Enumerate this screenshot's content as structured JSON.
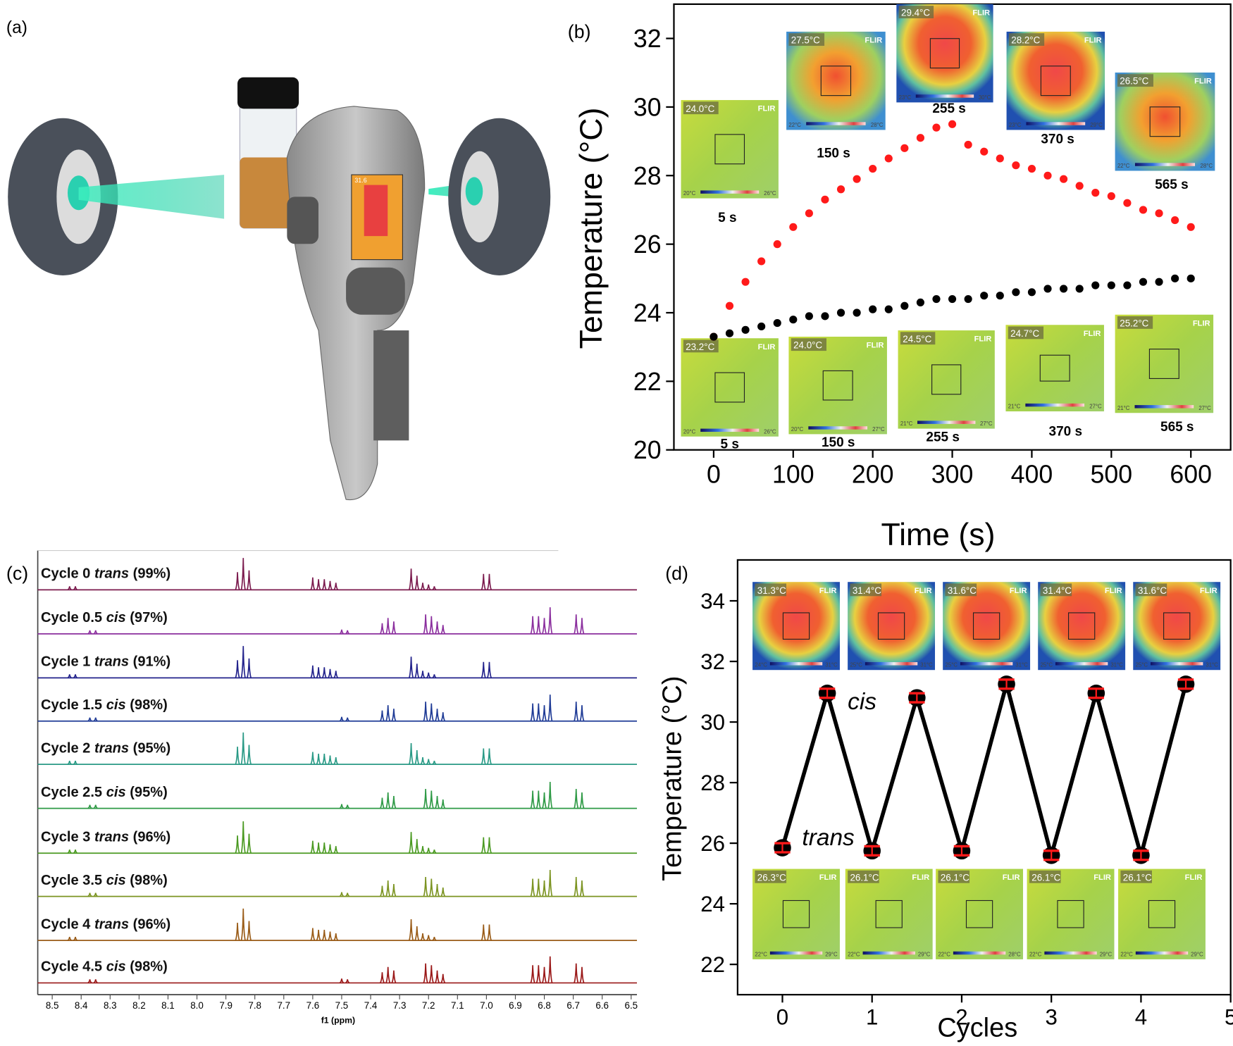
{
  "brand": "FLIR",
  "illustration": {
    "label": "(a)",
    "screen_reading": "31.6"
  },
  "chart_data": [
    {
      "type": "scatter",
      "label": "(b)",
      "xlabel": "Time (s)",
      "ylabel": "Temperature (°C)",
      "xlim": [
        -50,
        650
      ],
      "ylim": [
        20,
        33
      ],
      "xticks": [
        0,
        100,
        200,
        300,
        400,
        500,
        600
      ],
      "yticks": [
        20,
        22,
        24,
        26,
        28,
        30,
        32
      ],
      "x": [
        0,
        20,
        40,
        60,
        80,
        100,
        120,
        140,
        160,
        180,
        200,
        220,
        240,
        260,
        280,
        300,
        320,
        340,
        360,
        380,
        400,
        420,
        440,
        460,
        480,
        500,
        520,
        540,
        560,
        580,
        600
      ],
      "series": [
        {
          "color": "#ff1a1a",
          "values": [
            23.3,
            24.2,
            24.9,
            25.5,
            26.0,
            26.5,
            26.9,
            27.3,
            27.6,
            27.9,
            28.2,
            28.5,
            28.8,
            29.1,
            29.4,
            29.5,
            28.9,
            28.7,
            28.5,
            28.3,
            28.2,
            28.0,
            27.9,
            27.7,
            27.5,
            27.4,
            27.2,
            27.0,
            26.9,
            26.7,
            26.5
          ]
        },
        {
          "color": "#000000",
          "values": [
            23.3,
            23.4,
            23.5,
            23.6,
            23.7,
            23.8,
            23.9,
            23.9,
            24.0,
            24.0,
            24.1,
            24.1,
            24.2,
            24.3,
            24.4,
            24.4,
            24.4,
            24.5,
            24.5,
            24.6,
            24.6,
            24.7,
            24.7,
            24.7,
            24.8,
            24.8,
            24.8,
            24.9,
            24.9,
            25.0,
            25.0
          ]
        }
      ],
      "insets_top": [
        {
          "reading": "24.0°C",
          "time": "5 s",
          "scale": [
            "20°C",
            "26°C"
          ]
        },
        {
          "reading": "27.5°C",
          "time": "150 s",
          "scale": [
            "22°C",
            "28°C"
          ]
        },
        {
          "reading": "29.4°C",
          "time": "255 s",
          "scale": [
            "23°C",
            "30°C"
          ]
        },
        {
          "reading": "28.2°C",
          "time": "370 s",
          "scale": [
            "23°C",
            "29°C"
          ]
        },
        {
          "reading": "26.5°C",
          "time": "565 s",
          "scale": [
            "22°C",
            "28°C"
          ]
        }
      ],
      "insets_bottom": [
        {
          "reading": "23.2°C",
          "time": "5 s",
          "scale": [
            "20°C",
            "26°C"
          ]
        },
        {
          "reading": "24.0°C",
          "time": "150 s",
          "scale": [
            "20°C",
            "27°C"
          ]
        },
        {
          "reading": "24.5°C",
          "time": "255 s",
          "scale": [
            "21°C",
            "27°C"
          ]
        },
        {
          "reading": "24.7°C",
          "time": "370 s",
          "scale": [
            "21°C",
            "27°C"
          ]
        },
        {
          "reading": "25.2°C",
          "time": "565 s",
          "scale": [
            "21°C",
            "27°C"
          ]
        }
      ]
    },
    {
      "type": "spectra",
      "label": "(c)",
      "xlabel": "f1 (ppm)",
      "xlim": [
        8.55,
        6.48
      ],
      "xticks": [
        8.5,
        8.4,
        8.3,
        8.2,
        8.1,
        {
          "value": 8,
          "label": "8.0"
        },
        7.9,
        7.8,
        7.7,
        7.6,
        7.5,
        7.4,
        7.3,
        7.2,
        7.1,
        {
          "value": 7,
          "label": "7.0"
        },
        6.9,
        6.8,
        6.7,
        6.6,
        6.5
      ],
      "peak_sets": {
        "trans": {
          "ppm": [
            8.44,
            8.42,
            7.86,
            7.84,
            7.82,
            7.6,
            7.58,
            7.56,
            7.54,
            7.52,
            7.26,
            7.24,
            7.22,
            7.2,
            7.18,
            7.01,
            6.99
          ],
          "heights": [
            0.1,
            0.1,
            0.5,
            0.9,
            0.55,
            0.35,
            0.3,
            0.3,
            0.25,
            0.2,
            0.6,
            0.4,
            0.2,
            0.15,
            0.1,
            0.45,
            0.45
          ]
        },
        "cis": {
          "ppm": [
            8.37,
            8.35,
            7.5,
            7.48,
            7.36,
            7.34,
            7.32,
            7.21,
            7.19,
            7.17,
            7.15,
            6.84,
            6.82,
            6.8,
            6.78,
            6.69,
            6.67
          ],
          "heights": [
            0.1,
            0.1,
            0.12,
            0.1,
            0.3,
            0.45,
            0.35,
            0.55,
            0.5,
            0.35,
            0.25,
            0.5,
            0.5,
            0.45,
            0.75,
            0.55,
            0.45
          ]
        }
      },
      "spectra": [
        {
          "cycle": "Cycle 0",
          "isomer": "trans",
          "purity": "(99%)",
          "color": "#7b1b4e"
        },
        {
          "cycle": "Cycle 0.5",
          "isomer": "cis",
          "purity": "(97%)",
          "color": "#8b2f9e"
        },
        {
          "cycle": "Cycle 1",
          "isomer": "trans",
          "purity": "(91%)",
          "color": "#23238c"
        },
        {
          "cycle": "Cycle 1.5",
          "isomer": "cis",
          "purity": "(98%)",
          "color": "#1f3b96"
        },
        {
          "cycle": "Cycle 2",
          "isomer": "trans",
          "purity": "(95%)",
          "color": "#2a9a86"
        },
        {
          "cycle": "Cycle 2.5",
          "isomer": "cis",
          "purity": "(95%)",
          "color": "#2f9a46"
        },
        {
          "cycle": "Cycle 3",
          "isomer": "trans",
          "purity": "(96%)",
          "color": "#4b9a22"
        },
        {
          "cycle": "Cycle 3.5",
          "isomer": "cis",
          "purity": "(98%)",
          "color": "#7c9422"
        },
        {
          "cycle": "Cycle 4",
          "isomer": "trans",
          "purity": "(96%)",
          "color": "#9a5c18"
        },
        {
          "cycle": "Cycle 4.5",
          "isomer": "cis",
          "purity": "(98%)",
          "color": "#9a1818"
        }
      ]
    },
    {
      "type": "line",
      "label": "(d)",
      "xlabel": "Cycles",
      "ylabel": "Temperature (°C)",
      "xlim": [
        -0.5,
        5
      ],
      "ylim": [
        21,
        35.35
      ],
      "xticks": [
        0,
        1,
        2,
        3,
        4,
        5
      ],
      "yticks": [
        22,
        24,
        26,
        28,
        30,
        32,
        34
      ],
      "x": [
        0,
        0.5,
        1,
        1.5,
        2,
        2.5,
        3,
        3.5,
        4,
        4.5
      ],
      "series": [
        {
          "color": "#000000",
          "error_color": "#ff1a1a",
          "values": [
            25.85,
            30.95,
            25.75,
            30.8,
            25.75,
            31.25,
            25.6,
            30.95,
            25.6,
            31.25
          ],
          "errors": [
            0.15,
            0.15,
            0.15,
            0.15,
            0.15,
            0.15,
            0.15,
            0.15,
            0.15,
            0.15
          ]
        }
      ],
      "annotations": [
        "cis",
        "trans"
      ],
      "insets_top": [
        {
          "reading": "31.3°C",
          "scale": [
            "24°C",
            "31°C"
          ]
        },
        {
          "reading": "31.4°C",
          "scale": [
            "25°C",
            "31°C"
          ]
        },
        {
          "reading": "31.6°C",
          "scale": [
            "25°C",
            "31°C"
          ]
        },
        {
          "reading": "31.4°C",
          "scale": [
            "25°C",
            "31°C"
          ]
        },
        {
          "reading": "31.6°C",
          "scale": [
            "25°C",
            "31°C"
          ]
        }
      ],
      "insets_bottom": [
        {
          "reading": "26.3°C",
          "scale": [
            "22°C",
            "29°C"
          ]
        },
        {
          "reading": "26.1°C",
          "scale": [
            "22°C",
            "29°C"
          ]
        },
        {
          "reading": "26.1°C",
          "scale": [
            "22°C",
            "28°C"
          ]
        },
        {
          "reading": "26.1°C",
          "scale": [
            "22°C",
            "29°C"
          ]
        },
        {
          "reading": "26.1°C",
          "scale": [
            "22°C",
            "29°C"
          ]
        }
      ]
    }
  ]
}
